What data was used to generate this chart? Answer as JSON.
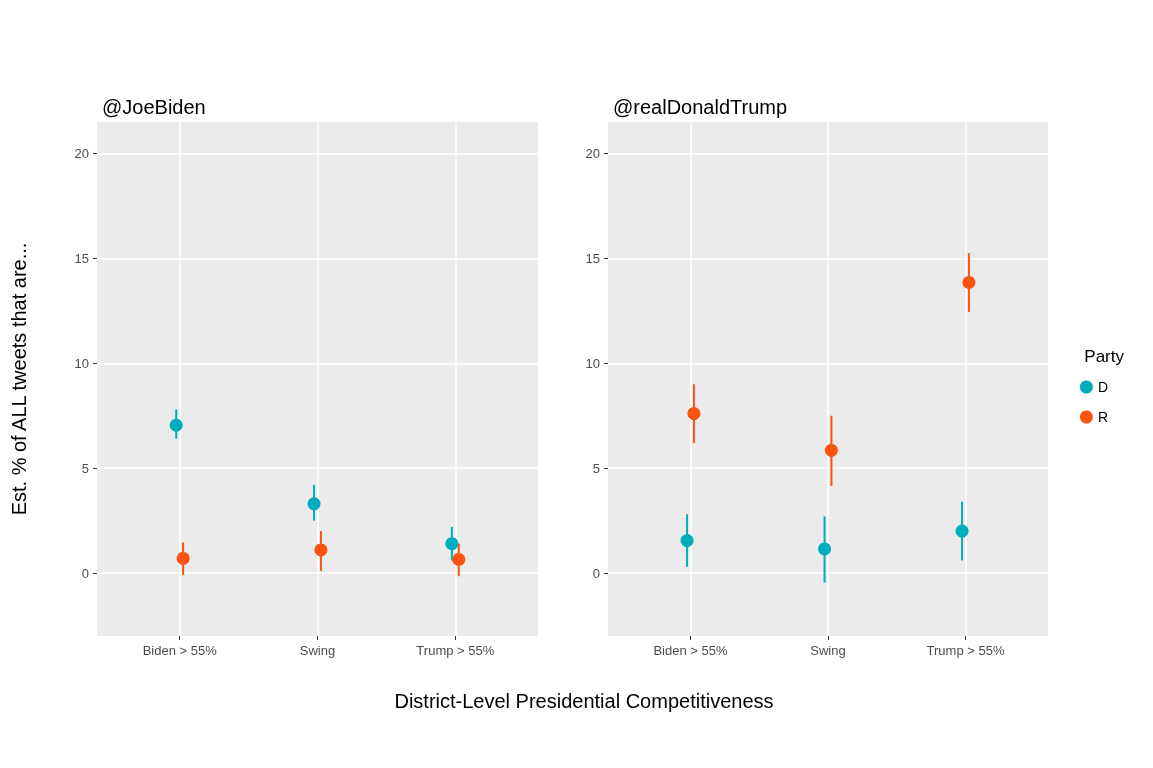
{
  "chart_data": [
    {
      "type": "scatter",
      "title": "@JoeBiden",
      "ylabel": "Est. % of ALL tweets that are...",
      "xlabel": "District-Level Presidential Competitiveness",
      "categories": [
        "Biden > 55%",
        "Swing",
        "Trump > 55%"
      ],
      "ylim": [
        -3,
        21.5
      ],
      "yticks": [
        0,
        5,
        10,
        15,
        20
      ],
      "grid": true,
      "marker": "circle",
      "legend": false,
      "series": [
        {
          "color": "#00adbd",
          "values": [
            7.05,
            3.3,
            1.4
          ],
          "errors": [
            [
              6.4,
              7.8
            ],
            [
              2.5,
              4.2
            ],
            [
              0.6,
              2.2
            ]
          ]
        },
        {
          "color": "#fc5410",
          "values": [
            0.7,
            1.1,
            0.65
          ],
          "errors": [
            [
              -0.1,
              1.45
            ],
            [
              0.1,
              2.0
            ],
            [
              -0.15,
              1.4
            ]
          ]
        }
      ]
    },
    {
      "type": "scatter",
      "title": "@realDonaldTrump",
      "legend_title": "Party",
      "categories": [
        "Biden > 55%",
        "Swing",
        "Trump > 55%"
      ],
      "ylim": [
        -3,
        21.5
      ],
      "yticks": [
        0,
        5,
        10,
        15,
        20
      ],
      "grid": true,
      "marker": "circle",
      "legend": "right",
      "series": [
        {
          "name": "D",
          "color": "#00adbd",
          "values": [
            1.55,
            1.15,
            2.0
          ],
          "errors": [
            [
              0.3,
              2.8
            ],
            [
              -0.45,
              2.7
            ],
            [
              0.6,
              3.4
            ]
          ]
        },
        {
          "name": "R",
          "color": "#fc5410",
          "values": [
            7.6,
            5.85,
            13.85
          ],
          "errors": [
            [
              6.2,
              9.0
            ],
            [
              4.15,
              7.5
            ],
            [
              12.45,
              15.25
            ]
          ]
        }
      ]
    }
  ]
}
